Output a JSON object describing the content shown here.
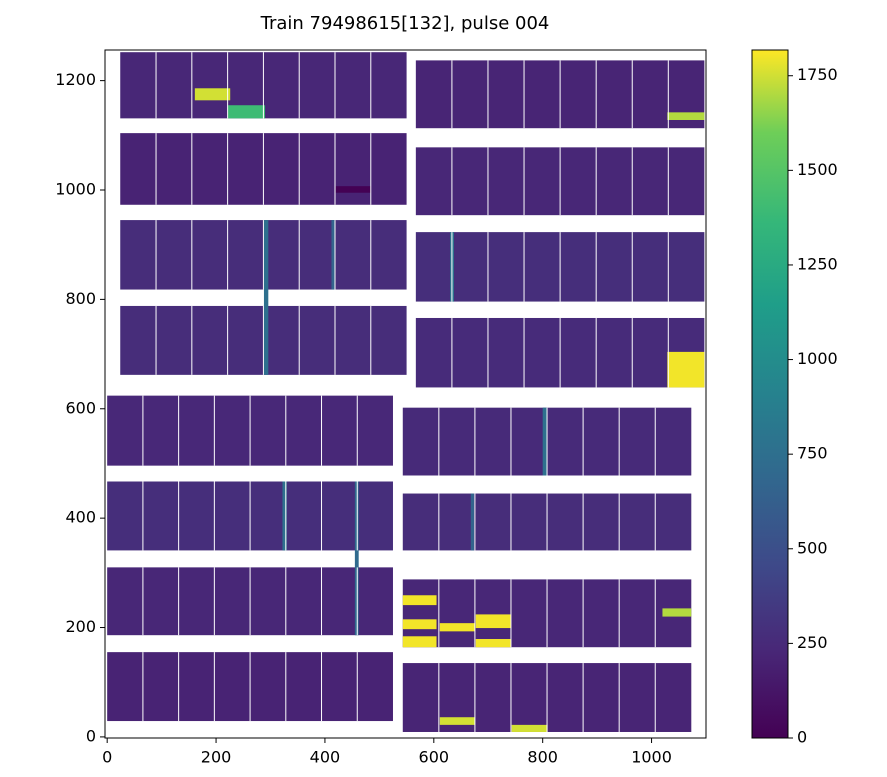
{
  "chart_data": {
    "type": "image",
    "title": "Train 79498615[132], pulse 004",
    "xlim": [
      -4,
      1100
    ],
    "ylim": [
      -2,
      1256
    ],
    "xticks": [
      0,
      200,
      400,
      600,
      800,
      1000
    ],
    "yticks": [
      0,
      200,
      400,
      600,
      800,
      1000,
      1200
    ],
    "clim": [
      0,
      1818
    ],
    "cticks": [
      0,
      250,
      500,
      750,
      1000,
      1250,
      1500,
      1750
    ],
    "colormap": "viridis",
    "modules": [
      {
        "x": [
          24,
          550
        ],
        "y": [
          1131,
          1252
        ],
        "value": 220
      },
      {
        "x": [
          24,
          550
        ],
        "y": [
          973,
          1104
        ],
        "value": 200
      },
      {
        "x": [
          24,
          550
        ],
        "y": [
          818,
          945
        ],
        "value": 260
      },
      {
        "x": [
          24,
          550
        ],
        "y": [
          662,
          788
        ],
        "value": 260
      },
      {
        "x": [
          567,
          1097
        ],
        "y": [
          1113,
          1237
        ],
        "value": 210
      },
      {
        "x": [
          567,
          1097
        ],
        "y": [
          954,
          1078
        ],
        "value": 220
      },
      {
        "x": [
          567,
          1097
        ],
        "y": [
          796,
          923
        ],
        "value": 270
      },
      {
        "x": [
          567,
          1097
        ],
        "y": [
          639,
          766
        ],
        "value": 250
      },
      {
        "x": [
          0,
          525
        ],
        "y": [
          496,
          624
        ],
        "value": 230
      },
      {
        "x": [
          0,
          525
        ],
        "y": [
          341,
          467
        ],
        "value": 270
      },
      {
        "x": [
          0,
          525
        ],
        "y": [
          186,
          310
        ],
        "value": 220
      },
      {
        "x": [
          0,
          525
        ],
        "y": [
          29,
          155
        ],
        "value": 200
      },
      {
        "x": [
          543,
          1073
        ],
        "y": [
          478,
          602
        ],
        "value": 240
      },
      {
        "x": [
          543,
          1073
        ],
        "y": [
          341,
          445
        ],
        "value": 260
      },
      {
        "x": [
          543,
          1073
        ],
        "y": [
          164,
          288
        ],
        "value": 220
      },
      {
        "x": [
          543,
          1073
        ],
        "y": [
          9,
          135
        ],
        "value": 210
      }
    ],
    "features": [
      {
        "x": [
          288,
          296
        ],
        "y": [
          662,
          945
        ],
        "value": 750
      },
      {
        "x": [
          412,
          418
        ],
        "y": [
          818,
          945
        ],
        "value": 650
      },
      {
        "x": [
          630,
          637
        ],
        "y": [
          796,
          923
        ],
        "value": 800
      },
      {
        "x": [
          322,
          330
        ],
        "y": [
          341,
          467
        ],
        "value": 750
      },
      {
        "x": [
          455,
          462
        ],
        "y": [
          186,
          467
        ],
        "value": 700
      },
      {
        "x": [
          800,
          808
        ],
        "y": [
          478,
          602
        ],
        "value": 750
      },
      {
        "x": [
          668,
          674
        ],
        "y": [
          341,
          445
        ],
        "value": 650
      },
      {
        "x": [
          161,
          226
        ],
        "y": [
          1164,
          1186
        ],
        "value": 1750
      },
      {
        "x": [
          222,
          290
        ],
        "y": [
          1131,
          1155
        ],
        "value": 1400
      },
      {
        "x": [
          420,
          484
        ],
        "y": [
          995,
          1007
        ],
        "value": 0
      },
      {
        "x": [
          1029,
          1097
        ],
        "y": [
          1128,
          1142
        ],
        "value": 1700
      },
      {
        "x": [
          1029,
          1097
        ],
        "y": [
          639,
          704
        ],
        "value": 1800
      },
      {
        "x": [
          543,
          605
        ],
        "y": [
          241,
          259
        ],
        "value": 1800
      },
      {
        "x": [
          543,
          605
        ],
        "y": [
          197,
          215
        ],
        "value": 1800
      },
      {
        "x": [
          543,
          605
        ],
        "y": [
          164,
          184
        ],
        "value": 1800
      },
      {
        "x": [
          611,
          675
        ],
        "y": [
          193,
          208
        ],
        "value": 1800
      },
      {
        "x": [
          677,
          741
        ],
        "y": [
          199,
          224
        ],
        "value": 1800
      },
      {
        "x": [
          677,
          741
        ],
        "y": [
          164,
          179
        ],
        "value": 1800
      },
      {
        "x": [
          1020,
          1073
        ],
        "y": [
          220,
          235
        ],
        "value": 1700
      },
      {
        "x": [
          611,
          675
        ],
        "y": [
          22,
          36
        ],
        "value": 1750
      },
      {
        "x": [
          743,
          809
        ],
        "y": [
          9,
          22
        ],
        "value": 1750
      }
    ]
  }
}
